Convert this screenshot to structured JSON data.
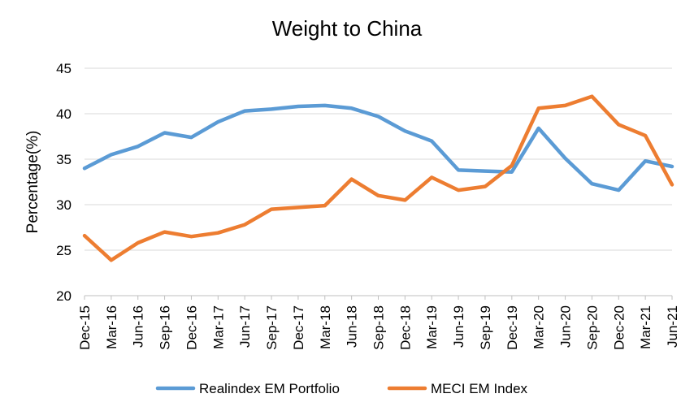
{
  "chart_data": {
    "type": "line",
    "title": "Weight to China",
    "xlabel": "",
    "ylabel": "Percentage(%)",
    "ylim": [
      20,
      45
    ],
    "yticks": [
      "20",
      "25",
      "30",
      "35",
      "40",
      "45"
    ],
    "grid": true,
    "legend_position": "bottom",
    "categories": [
      "Dec-15",
      "Mar-16",
      "Jun-16",
      "Sep-16",
      "Dec-16",
      "Mar-17",
      "Jun-17",
      "Sep-17",
      "Dec-17",
      "Mar-18",
      "Jun-18",
      "Sep-18",
      "Dec-18",
      "Mar-19",
      "Jun-19",
      "Sep-19",
      "Dec-19",
      "Mar-20",
      "Jun-20",
      "Sep-20",
      "Dec-20",
      "Mar-21",
      "Jun-21"
    ],
    "series": [
      {
        "name": "Realindex EM Portfolio",
        "color": "#5b9bd5",
        "values": [
          34.0,
          35.5,
          36.4,
          37.9,
          37.4,
          39.1,
          40.3,
          40.5,
          40.8,
          40.9,
          40.6,
          39.7,
          38.1,
          37.0,
          33.8,
          33.7,
          33.6,
          38.4,
          35.1,
          32.3,
          31.6,
          34.8,
          34.2
        ]
      },
      {
        "name": "MECI EM Index",
        "color": "#ed7d31",
        "values": [
          26.6,
          23.9,
          25.8,
          27.0,
          26.5,
          26.9,
          27.8,
          29.5,
          29.7,
          29.9,
          32.8,
          31.0,
          30.5,
          33.0,
          31.6,
          32.0,
          34.3,
          40.6,
          40.9,
          41.9,
          38.8,
          37.6,
          32.2
        ]
      }
    ]
  }
}
